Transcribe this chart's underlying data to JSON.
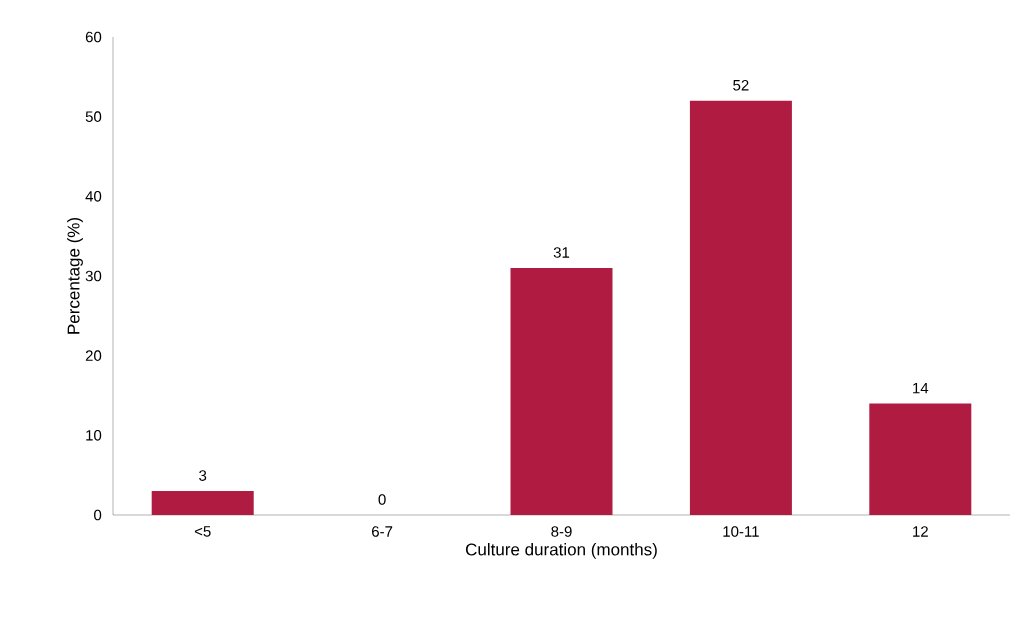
{
  "chart_data": {
    "type": "bar",
    "xlabel": "Culture duration (months)",
    "ylabel": "Percentage (%)",
    "categories": [
      "<5",
      "6-7",
      "8-9",
      "10-11",
      "12"
    ],
    "values": [
      3,
      0,
      31,
      52,
      14
    ],
    "color": "#b01c41",
    "data_labels": true,
    "grid": false,
    "ylim": [
      0,
      60
    ],
    "yticks": [
      0,
      10,
      20,
      30,
      40,
      50,
      60
    ]
  }
}
